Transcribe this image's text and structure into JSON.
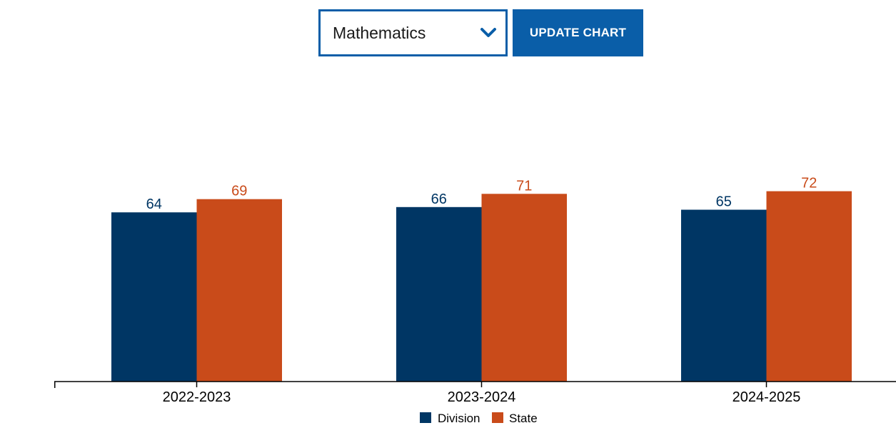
{
  "controls": {
    "subject_selected": "Mathematics",
    "update_label": "UPDATE CHART"
  },
  "colors": {
    "accent": "#0a5ea8",
    "division": "#003664",
    "state": "#c94b1a"
  },
  "chart_data": {
    "type": "bar",
    "categories": [
      "2022-2023",
      "2023-2024",
      "2024-2025"
    ],
    "series": [
      {
        "name": "Division",
        "values": [
          64,
          66,
          65
        ]
      },
      {
        "name": "State",
        "values": [
          69,
          71,
          72
        ]
      }
    ],
    "ylim": [
      0,
      100
    ],
    "grid": false,
    "legend": "bottom-center",
    "data_labels": true
  }
}
